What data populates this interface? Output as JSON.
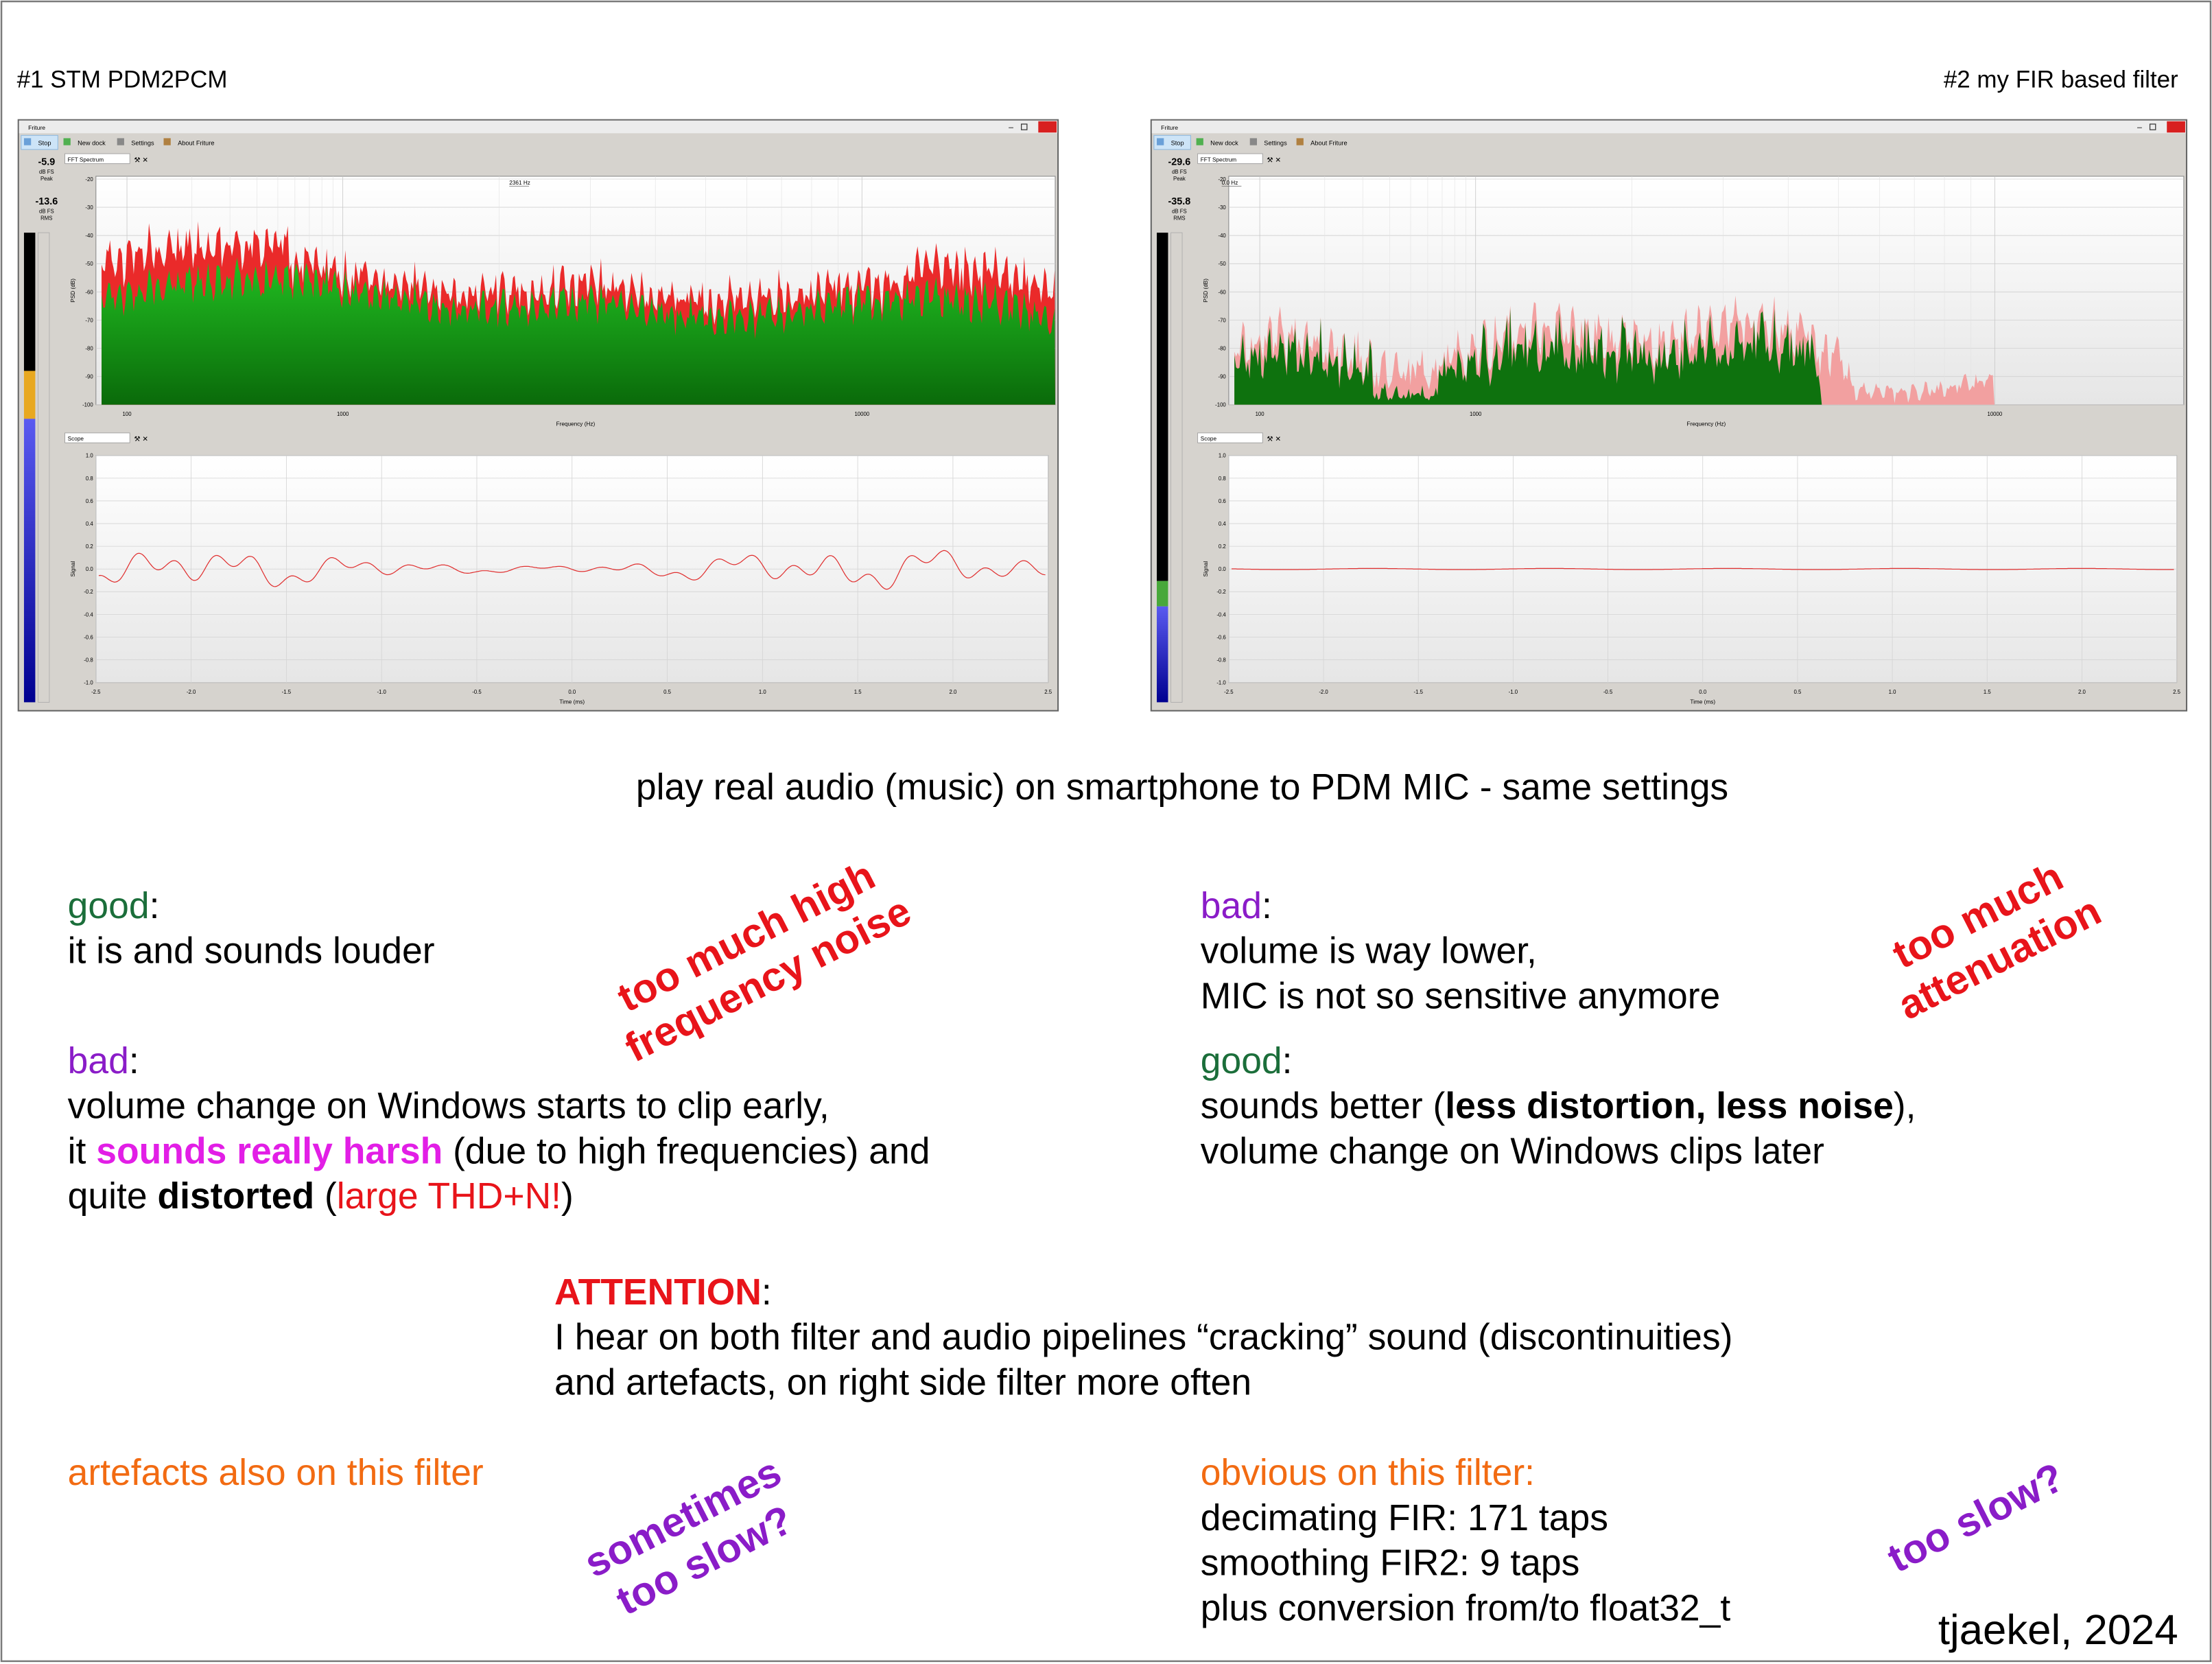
{
  "panels": [
    {
      "label": "#1 STM PDM2PCM",
      "window_title": "Friture",
      "toolbar": [
        "Stop",
        "New dock",
        "Settings",
        "About Friture"
      ],
      "meter": {
        "peak": "-5.9",
        "peak_unit": "dB FS",
        "peak_label": "Peak",
        "rms": "-13.6",
        "rms_unit": "dB FS",
        "rms_label": "RMS"
      },
      "spectrum": {
        "widget": "FFT Spectrum",
        "y_label": "PSD (dB)",
        "y_ticks": [
          "-20",
          "-30",
          "-40",
          "-50",
          "-60",
          "-70",
          "-80",
          "-90",
          "-100"
        ],
        "x_label": "Frequency (Hz)",
        "x_ticks": [
          "100",
          "1000",
          "10000"
        ],
        "marker": "2361 Hz"
      },
      "scope": {
        "widget": "Scope",
        "y_label": "Signal",
        "y_ticks": [
          "1.0",
          "0.8",
          "0.6",
          "0.4",
          "0.2",
          "0.0",
          "-0.2",
          "-0.4",
          "-0.6",
          "-0.8",
          "-1.0"
        ],
        "x_label": "Time (ms)",
        "x_ticks": [
          "-2.5",
          "-2.0",
          "-1.5",
          "-1.0",
          "-0.5",
          "0.0",
          "0.5",
          "1.0",
          "1.5",
          "2.0",
          "2.5"
        ]
      }
    },
    {
      "label": "#2 my FIR based filter",
      "window_title": "Friture",
      "toolbar": [
        "Stop",
        "New dock",
        "Settings",
        "About Friture"
      ],
      "meter": {
        "peak": "-29.6",
        "peak_unit": "dB FS",
        "peak_label": "Peak",
        "rms": "-35.8",
        "rms_unit": "dB FS",
        "rms_label": "RMS"
      },
      "spectrum": {
        "widget": "FFT Spectrum",
        "y_label": "PSD (dB)",
        "y_ticks": [
          "-20",
          "-30",
          "-40",
          "-50",
          "-60",
          "-70",
          "-80",
          "-90",
          "-100"
        ],
        "x_label": "Frequency (Hz)",
        "x_ticks": [
          "100",
          "1000",
          "10000"
        ],
        "marker": "0.0 Hz"
      },
      "scope": {
        "widget": "Scope",
        "y_label": "Signal",
        "y_ticks": [
          "1.0",
          "0.8",
          "0.6",
          "0.4",
          "0.2",
          "0.0",
          "-0.2",
          "-0.4",
          "-0.6",
          "-0.8",
          "-1.0"
        ],
        "x_label": "Time (ms)",
        "x_ticks": [
          "-2.5",
          "-2.0",
          "-1.5",
          "-1.0",
          "-0.5",
          "0.0",
          "0.5",
          "1.0",
          "1.5",
          "2.0",
          "2.5"
        ]
      }
    }
  ],
  "caption": "play real audio (music) on smartphone to PDM MIC - same settings",
  "left_notes": {
    "lines": [
      [
        "good",
        ":"
      ],
      [
        "it is and sounds louder"
      ],
      [
        "bad",
        ":"
      ],
      [
        "volume change on Windows starts to clip early,"
      ],
      [
        "it ",
        "sounds really harsh",
        " (due to high frequencies) and"
      ],
      [
        "quite ",
        "distorted",
        " (",
        "large THD+N!",
        ")"
      ]
    ],
    "stamp": [
      "too much high",
      "frequency noise"
    ]
  },
  "right_notes": {
    "lines": [
      [
        "bad",
        ":"
      ],
      [
        "volume is way lower,"
      ],
      [
        "MIC is not so sensitive anymore"
      ],
      [
        "good",
        ":"
      ],
      [
        "sounds better (",
        "less distortion, less noise",
        "),"
      ],
      [
        "volume change on Windows clips later"
      ]
    ],
    "stamp": [
      "too much",
      "attenuation"
    ]
  },
  "attention": {
    "lines": [
      [
        "ATTENTION",
        ":"
      ],
      [
        "I hear on both filter and audio pipelines “cracking” sound (discontinuities)"
      ],
      [
        "and artefacts, on right side filter more often"
      ]
    ]
  },
  "left_footer": {
    "note": "artefacts also on this filter",
    "stamp": [
      "sometimes",
      "too slow?"
    ]
  },
  "right_footer": {
    "heading": "obvious on this filter:",
    "lines": [
      "decimating FIR: 171 taps",
      "smoothing FIR2: 9 taps",
      "plus conversion from/to float32_t"
    ],
    "stamp": [
      "too slow?"
    ]
  },
  "signature": "tjaekel, 2024"
}
